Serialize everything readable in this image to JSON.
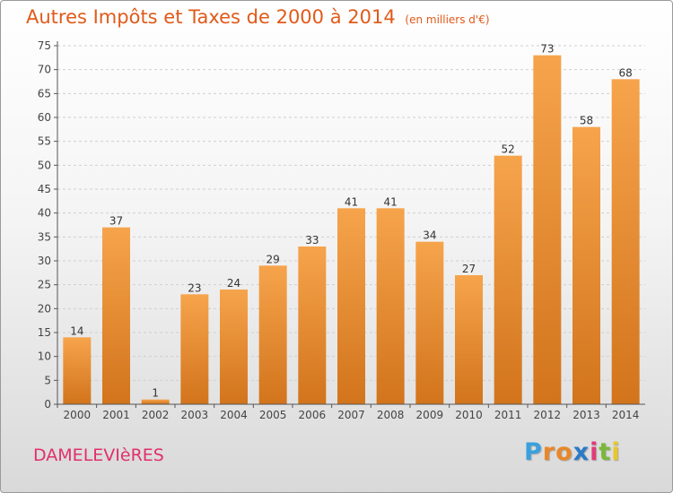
{
  "chart_data": {
    "type": "bar",
    "title": "Autres Impôts et Taxes de 2000 à 2014",
    "subtitle": "(en milliers d'€)",
    "xlabel": "",
    "ylabel": "",
    "categories": [
      "2000",
      "2001",
      "2002",
      "2003",
      "2004",
      "2005",
      "2006",
      "2007",
      "2008",
      "2009",
      "2010",
      "2011",
      "2012",
      "2013",
      "2014"
    ],
    "values": [
      14,
      37,
      1,
      23,
      24,
      29,
      33,
      41,
      41,
      34,
      27,
      52,
      73,
      58,
      68
    ],
    "value_labels": [
      "14",
      "37",
      "1",
      "23",
      "24",
      "29",
      "33",
      "41",
      "41",
      "34",
      "27",
      "52",
      "73",
      "58",
      "68"
    ],
    "ylim": [
      0,
      75
    ],
    "yticks": [
      0,
      5,
      10,
      15,
      20,
      25,
      30,
      35,
      40,
      45,
      50,
      55,
      60,
      65,
      70,
      75
    ],
    "ytick_labels": [
      "0",
      "5",
      "10",
      "15",
      "20",
      "25",
      "30",
      "35",
      "40",
      "45",
      "50",
      "55",
      "60",
      "65",
      "70",
      "75"
    ],
    "grid": "horizontal",
    "legend": "none",
    "bar_color_top": "#f6a44c",
    "bar_color_bottom": "#d2741c"
  },
  "footer": {
    "commune": "DAMELEVIèRES",
    "brand_letters": [
      "P",
      "r",
      "o",
      "x",
      "i",
      "t",
      "i"
    ],
    "brand_colors": [
      "#3aa0de",
      "#e8872a",
      "#e8872a",
      "#2a7ac8",
      "#e03a7a",
      "#7ab83a",
      "#e8c82a"
    ]
  }
}
